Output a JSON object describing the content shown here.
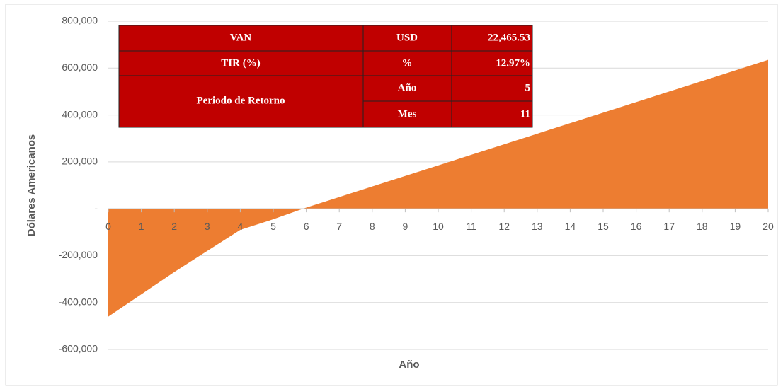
{
  "chart_data": {
    "type": "area",
    "x_label": "Año",
    "y_label": "Dólares Americanos",
    "x": [
      0,
      1,
      2,
      3,
      4,
      5,
      6,
      7,
      8,
      9,
      10,
      11,
      12,
      13,
      14,
      15,
      16,
      17,
      18,
      19,
      20
    ],
    "xlim": [
      0,
      20
    ],
    "values": [
      -460000,
      -365000,
      -270000,
      -180000,
      -90000,
      -45000,
      5000,
      50000,
      95000,
      140000,
      185000,
      230000,
      275000,
      320000,
      365000,
      410000,
      455000,
      500000,
      545000,
      590000,
      635000
    ],
    "color": "#ed7d31",
    "ylim": [
      -600000,
      800000
    ],
    "yticks": [
      {
        "value": -600000,
        "label": "-600,000"
      },
      {
        "value": -400000,
        "label": "-400,000"
      },
      {
        "value": -200000,
        "label": "-200,000"
      },
      {
        "value": 0,
        "label": "-"
      },
      {
        "value": 200000,
        "label": "200,000"
      },
      {
        "value": 400000,
        "label": "400,000"
      },
      {
        "value": 600000,
        "label": "600,000"
      },
      {
        "value": 800000,
        "label": "800,000"
      }
    ],
    "grid": true
  },
  "table": {
    "rows": [
      [
        "VAN",
        "USD",
        "22,465.53"
      ],
      [
        "TIR (%)",
        "%",
        "12.97%"
      ],
      [
        "Periodo de Retorno",
        "Año",
        "5"
      ],
      [
        "Mes",
        "11"
      ]
    ]
  }
}
